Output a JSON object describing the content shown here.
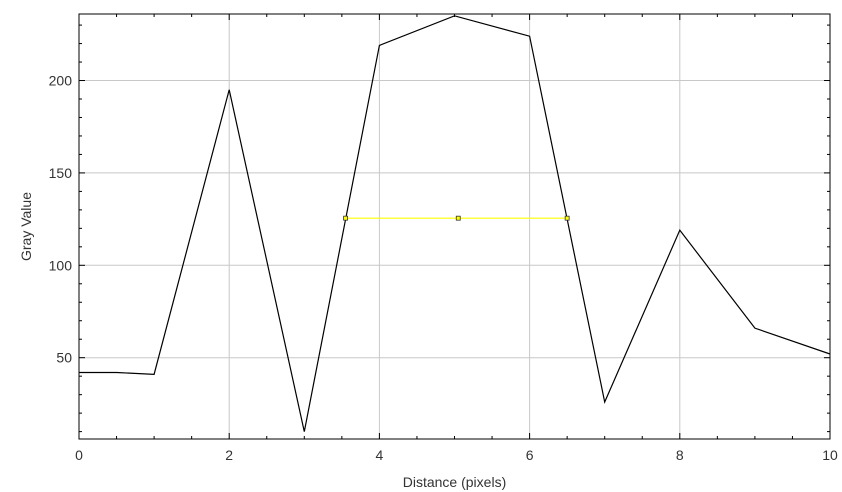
{
  "chart_data": {
    "type": "line",
    "xlabel": "Distance (pixels)",
    "ylabel": "Gray Value",
    "xlim": [
      0,
      10
    ],
    "ylim": [
      6,
      236
    ],
    "x_ticks": [
      0,
      2,
      4,
      6,
      8,
      10
    ],
    "y_ticks": [
      50,
      100,
      150,
      200
    ],
    "grid": true,
    "series": [
      {
        "color": "#000000",
        "x": [
          0,
          0.5,
          1,
          2,
          3,
          4,
          5,
          6,
          7,
          8,
          9,
          10
        ],
        "y": [
          42,
          42,
          41,
          195,
          10,
          219,
          235,
          224,
          26,
          119,
          66,
          52
        ]
      }
    ],
    "annotations": [
      {
        "type": "fwhm-line",
        "color": "#ffff00",
        "x_start": 3.55,
        "x_mid": 5.05,
        "x_end": 6.5,
        "y": 125.5
      }
    ]
  }
}
